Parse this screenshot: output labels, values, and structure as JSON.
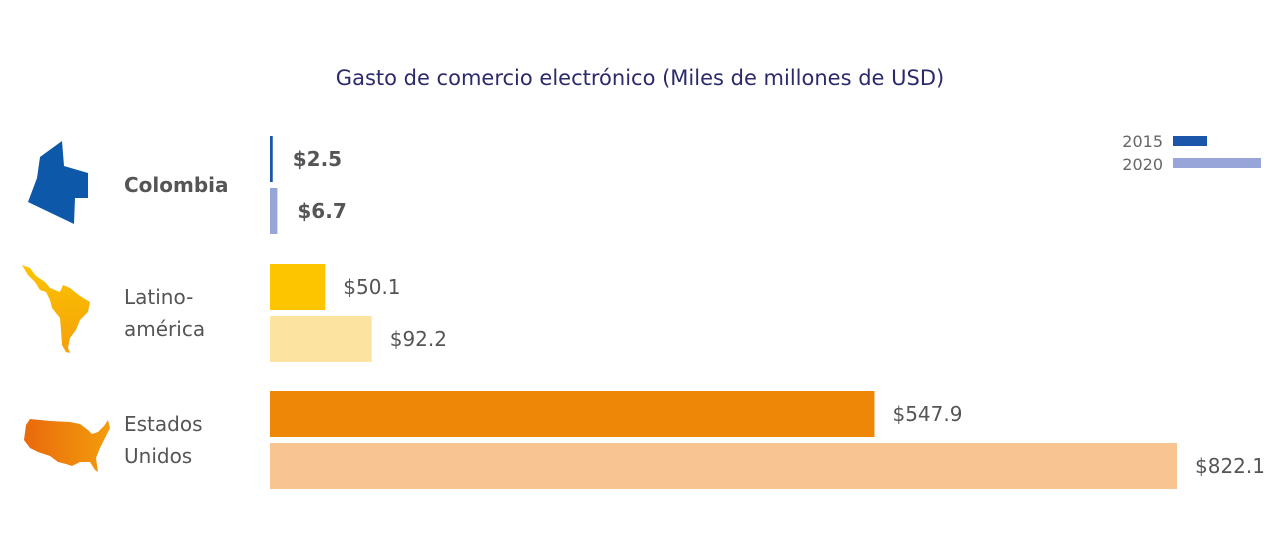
{
  "chart_data": {
    "type": "bar",
    "orientation": "horizontal",
    "title": "Gasto de comercio electrónico (Miles de millones de USD)",
    "xlabel": "",
    "ylabel": "",
    "grid": false,
    "legend_position": "top-right",
    "categories": [
      {
        "label_lines": [
          "Colombia"
        ],
        "bold": true,
        "icon": "colombia-map-icon"
      },
      {
        "label_lines": [
          "Latino-",
          "américa"
        ],
        "bold": false,
        "icon": "latin-america-map-icon"
      },
      {
        "label_lines": [
          "Estados",
          "Unidos"
        ],
        "bold": false,
        "icon": "usa-map-icon"
      }
    ],
    "series": [
      {
        "name": "2015",
        "values": [
          2.5,
          50.1,
          547.9
        ],
        "labels": [
          "$2.5",
          "$50.1",
          "$547.9"
        ],
        "colors": [
          "#1c56aa",
          "#fcc500",
          "#ee8707"
        ]
      },
      {
        "name": "2020",
        "values": [
          6.7,
          92.2,
          822.1
        ],
        "labels": [
          "$6.7",
          "$92.2",
          "$822.1"
        ],
        "colors": [
          "#97a5d8",
          "#fde3a0",
          "#f8c592"
        ]
      }
    ],
    "legend_colors": [
      "#1c56aa",
      "#97a5d8"
    ],
    "xlim": [
      0,
      822.1
    ]
  }
}
